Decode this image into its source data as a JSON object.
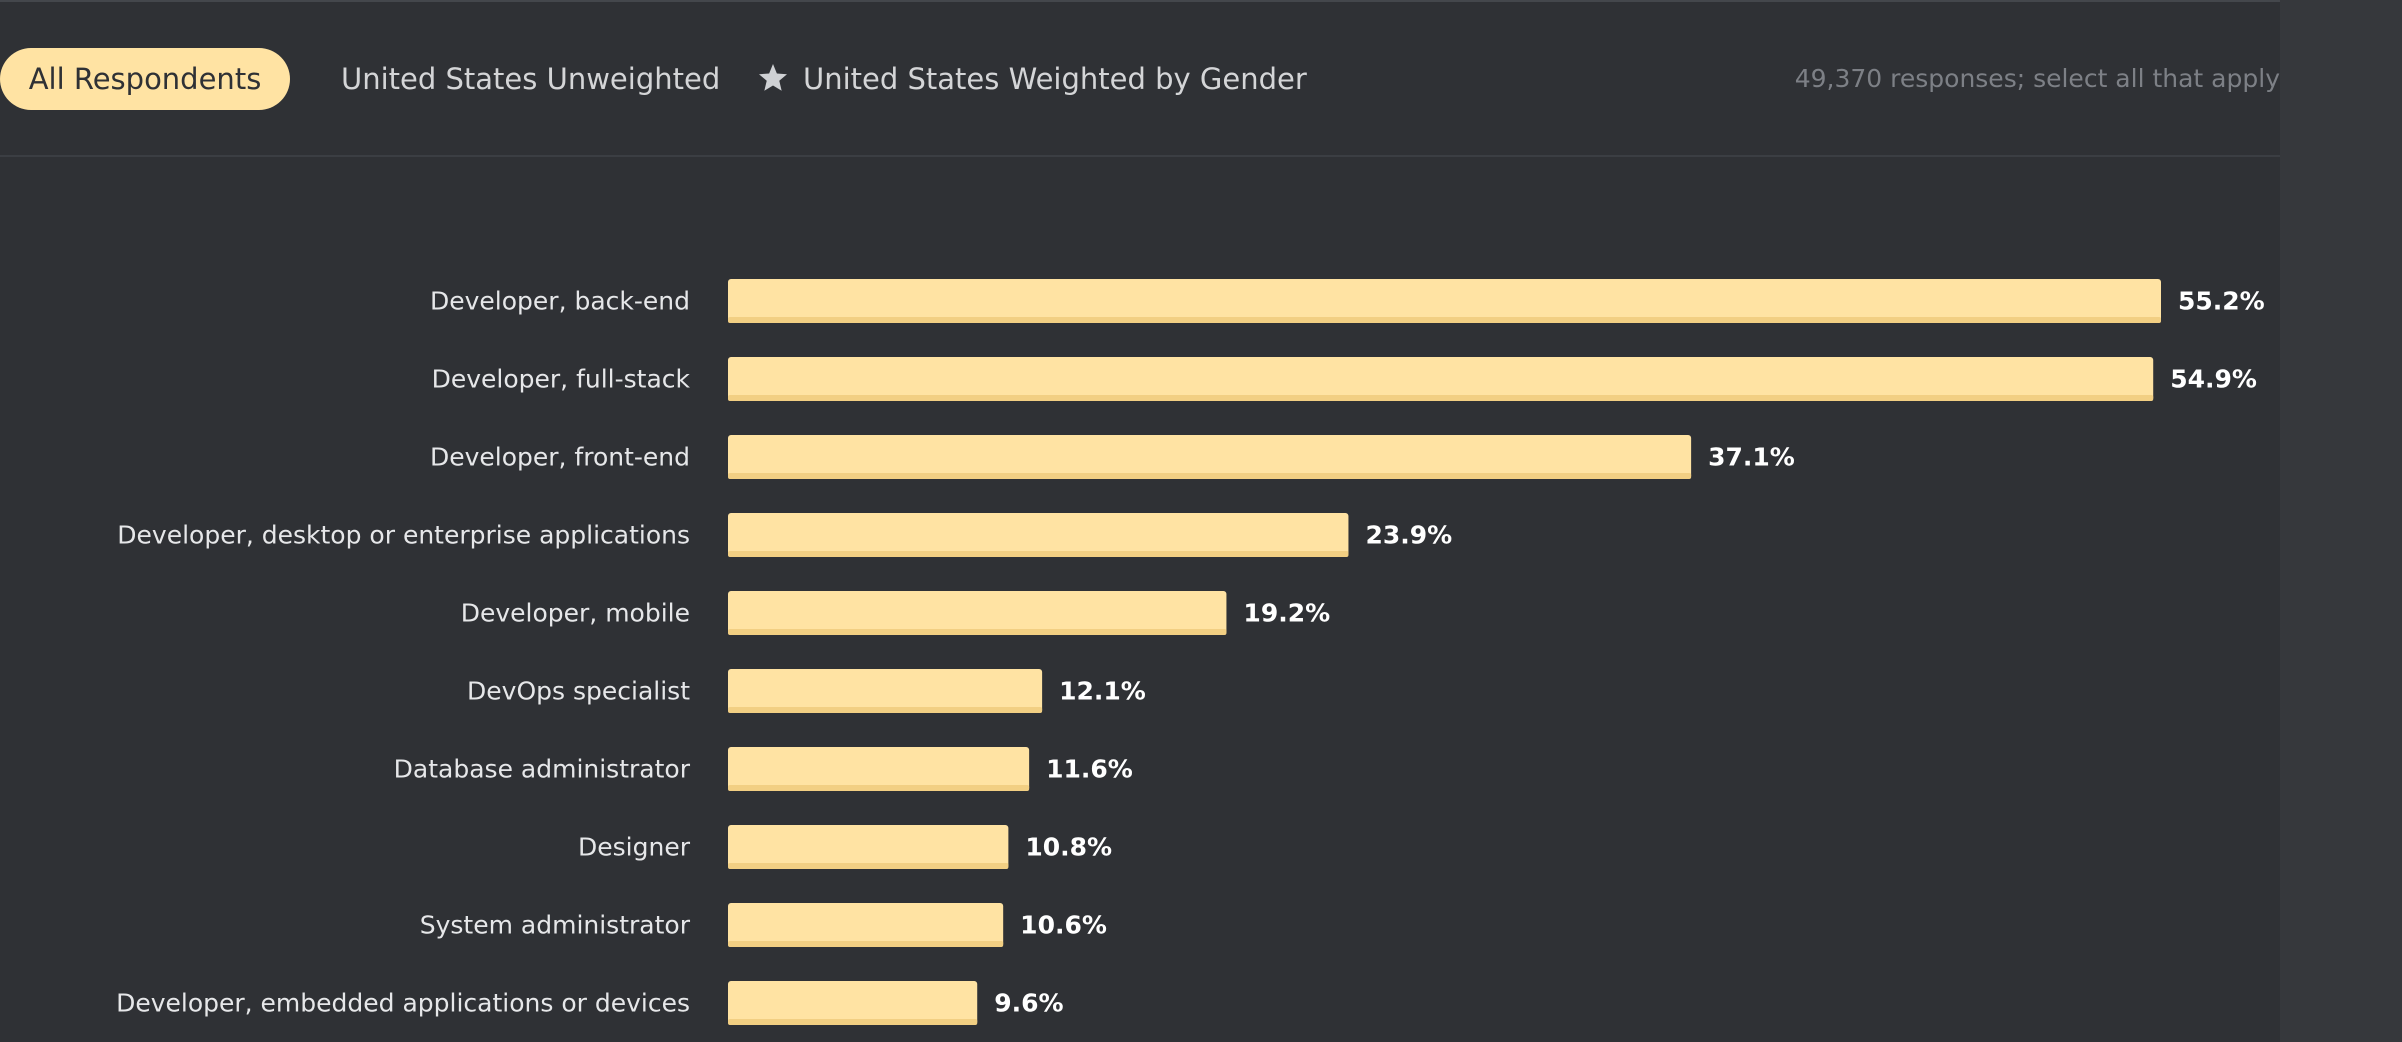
{
  "filter_tabs": {
    "all_respondents": "All Respondents",
    "us_unweighted": "United States Unweighted",
    "us_weighted": "United States Weighted by Gender",
    "active": "All Respondents"
  },
  "responses_note": "49,370 responses; select all that apply",
  "colors": {
    "background": "#2f3135",
    "bar": "#ffe3a3",
    "bar_shadow": "#f2cf83",
    "active_tab": "#ffe3a3"
  },
  "chart_data": {
    "type": "bar",
    "orientation": "horizontal",
    "title": "",
    "xlabel": "",
    "ylabel": "",
    "xlim": [
      0,
      55.2
    ],
    "categories": [
      "Developer, back-end",
      "Developer, full-stack",
      "Developer, front-end",
      "Developer, desktop or enterprise applications",
      "Developer, mobile",
      "DevOps specialist",
      "Database administrator",
      "Designer",
      "System administrator",
      "Developer, embedded applications or devices"
    ],
    "values": [
      55.2,
      54.9,
      37.1,
      23.9,
      19.2,
      12.1,
      11.6,
      10.8,
      10.6,
      9.6
    ],
    "value_labels": [
      "55.2%",
      "54.9%",
      "37.1%",
      "23.9%",
      "19.2%",
      "12.1%",
      "11.6%",
      "10.8%",
      "10.6%",
      "9.6%"
    ]
  }
}
